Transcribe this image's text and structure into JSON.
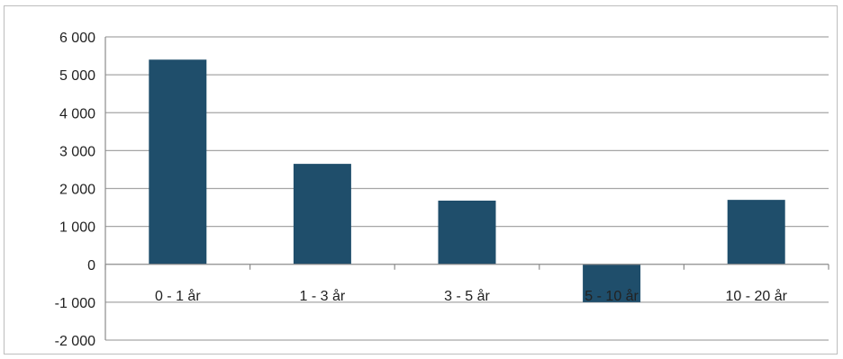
{
  "chart_data": {
    "type": "bar",
    "title": "",
    "xlabel": "",
    "ylabel": "",
    "categories": [
      "0 - 1 år",
      "1 - 3 år",
      "3 - 5 år",
      "5 - 10 år",
      "10 - 20 år"
    ],
    "values": [
      5400,
      2650,
      1680,
      -1000,
      1700
    ],
    "ylim": [
      -2000,
      6000
    ],
    "yticks": [
      6000,
      5000,
      4000,
      3000,
      2000,
      1000,
      0,
      -1000,
      -2000
    ],
    "ytick_labels": [
      "6 000",
      "5 000",
      "4 000",
      "3 000",
      "2 000",
      "1 000",
      "0",
      "-1 000",
      "-2 000"
    ],
    "grid": true,
    "legend": "none",
    "bar_color": "#1f4e6b",
    "grid_color": "#a6a6a6"
  }
}
